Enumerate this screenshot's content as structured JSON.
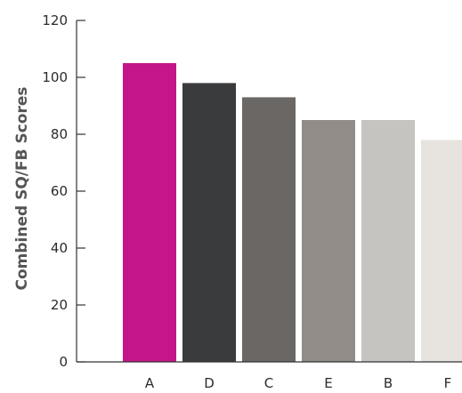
{
  "chart_data": {
    "type": "bar",
    "title": "",
    "xlabel": "",
    "ylabel": "Combined SQ/FB Scores",
    "ylim": [
      0,
      120
    ],
    "yticks": [
      0,
      20,
      40,
      60,
      80,
      100,
      120
    ],
    "grid": false,
    "legend": "none",
    "categories": [
      "A",
      "D",
      "C",
      "E",
      "B",
      "F"
    ],
    "values": [
      105,
      98,
      93,
      85,
      85,
      78
    ],
    "colors": [
      "#c4158a",
      "#3a3b3d",
      "#6b6765",
      "#918c88",
      "#c5c4c0",
      "#e7e4df"
    ],
    "axis_color": "#333333"
  }
}
